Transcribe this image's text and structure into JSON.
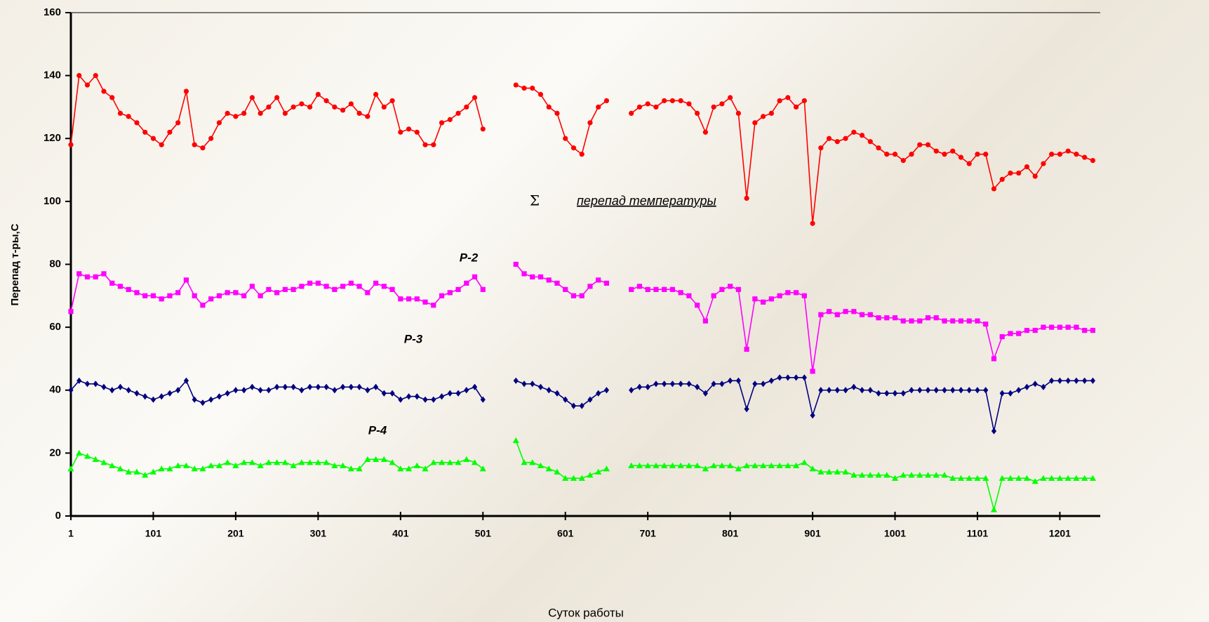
{
  "chart_data": {
    "type": "line",
    "x_label": "Суток работы",
    "y_label": "Перепад т-ры,С",
    "sigma_label": "Σ",
    "xlim": [
      1,
      1250
    ],
    "ylim": [
      0,
      160
    ],
    "xticks": [
      1,
      101,
      201,
      301,
      401,
      501,
      601,
      701,
      801,
      901,
      1001,
      1101,
      1201
    ],
    "yticks": [
      0,
      20,
      40,
      60,
      80,
      100,
      120,
      140,
      160
    ],
    "x": [
      1,
      11,
      21,
      31,
      41,
      51,
      61,
      71,
      81,
      91,
      101,
      111,
      121,
      131,
      141,
      151,
      161,
      171,
      181,
      191,
      201,
      211,
      221,
      231,
      241,
      251,
      261,
      271,
      281,
      291,
      301,
      311,
      321,
      331,
      341,
      351,
      361,
      371,
      381,
      391,
      401,
      411,
      421,
      431,
      441,
      451,
      461,
      471,
      481,
      491,
      501,
      511,
      521,
      531,
      541,
      551,
      561,
      571,
      581,
      591,
      601,
      611,
      621,
      631,
      641,
      651,
      661,
      671,
      681,
      691,
      701,
      711,
      721,
      731,
      741,
      751,
      761,
      771,
      781,
      791,
      801,
      811,
      821,
      831,
      841,
      851,
      861,
      871,
      881,
      891,
      901,
      911,
      921,
      931,
      941,
      951,
      961,
      971,
      981,
      991,
      1001,
      1011,
      1021,
      1031,
      1041,
      1051,
      1061,
      1071,
      1081,
      1091,
      1101,
      1111,
      1121,
      1131,
      1141,
      1151,
      1161,
      1171,
      1181,
      1191,
      1201,
      1211,
      1221,
      1231,
      1241
    ],
    "series": [
      {
        "name": "перепад температуры",
        "color": "#ff0000",
        "marker": "circle",
        "values": [
          118,
          140,
          137,
          140,
          135,
          133,
          128,
          127,
          125,
          122,
          120,
          118,
          122,
          125,
          135,
          118,
          117,
          120,
          125,
          128,
          127,
          128,
          133,
          128,
          130,
          133,
          128,
          130,
          131,
          130,
          134,
          132,
          130,
          129,
          131,
          128,
          127,
          134,
          130,
          132,
          122,
          123,
          122,
          118,
          118,
          125,
          126,
          128,
          130,
          133,
          123,
          null,
          null,
          null,
          137,
          136,
          136,
          134,
          130,
          128,
          120,
          117,
          115,
          125,
          130,
          132,
          null,
          null,
          128,
          130,
          131,
          130,
          132,
          132,
          132,
          131,
          128,
          122,
          130,
          131,
          133,
          128,
          101,
          125,
          127,
          128,
          132,
          133,
          130,
          132,
          93,
          117,
          120,
          119,
          120,
          122,
          121,
          119,
          117,
          115,
          115,
          113,
          115,
          118,
          118,
          116,
          115,
          116,
          114,
          112,
          115,
          115,
          104,
          107,
          109,
          109,
          111,
          108,
          112,
          115,
          115,
          116,
          115,
          114,
          113
        ]
      },
      {
        "name": "P-2",
        "color": "#ff00ff",
        "marker": "square",
        "values": [
          65,
          77,
          76,
          76,
          77,
          74,
          73,
          72,
          71,
          70,
          70,
          69,
          70,
          71,
          75,
          70,
          67,
          69,
          70,
          71,
          71,
          70,
          73,
          70,
          72,
          71,
          72,
          72,
          73,
          74,
          74,
          73,
          72,
          73,
          74,
          73,
          71,
          74,
          73,
          72,
          69,
          69,
          69,
          68,
          67,
          70,
          71,
          72,
          74,
          76,
          72,
          null,
          null,
          null,
          80,
          77,
          76,
          76,
          75,
          74,
          72,
          70,
          70,
          73,
          75,
          74,
          null,
          null,
          72,
          73,
          72,
          72,
          72,
          72,
          71,
          70,
          67,
          62,
          70,
          72,
          73,
          72,
          53,
          69,
          68,
          69,
          70,
          71,
          71,
          70,
          46,
          64,
          65,
          64,
          65,
          65,
          64,
          64,
          63,
          63,
          63,
          62,
          62,
          62,
          63,
          63,
          62,
          62,
          62,
          62,
          62,
          61,
          50,
          57,
          58,
          58,
          59,
          59,
          60,
          60,
          60,
          60,
          60,
          59,
          59
        ]
      },
      {
        "name": "P-3",
        "color": "#000080",
        "marker": "diamond",
        "values": [
          40,
          43,
          42,
          42,
          41,
          40,
          41,
          40,
          39,
          38,
          37,
          38,
          39,
          40,
          43,
          37,
          36,
          37,
          38,
          39,
          40,
          40,
          41,
          40,
          40,
          41,
          41,
          41,
          40,
          41,
          41,
          41,
          40,
          41,
          41,
          41,
          40,
          41,
          39,
          39,
          37,
          38,
          38,
          37,
          37,
          38,
          39,
          39,
          40,
          41,
          37,
          null,
          null,
          null,
          43,
          42,
          42,
          41,
          40,
          39,
          37,
          35,
          35,
          37,
          39,
          40,
          null,
          null,
          40,
          41,
          41,
          42,
          42,
          42,
          42,
          42,
          41,
          39,
          42,
          42,
          43,
          43,
          34,
          42,
          42,
          43,
          44,
          44,
          44,
          44,
          32,
          40,
          40,
          40,
          40,
          41,
          40,
          40,
          39,
          39,
          39,
          39,
          40,
          40,
          40,
          40,
          40,
          40,
          40,
          40,
          40,
          40,
          27,
          39,
          39,
          40,
          41,
          42,
          41,
          43,
          43,
          43,
          43,
          43,
          43
        ]
      },
      {
        "name": "P-4",
        "color": "#00ff00",
        "marker": "triangle",
        "values": [
          15,
          20,
          19,
          18,
          17,
          16,
          15,
          14,
          14,
          13,
          14,
          15,
          15,
          16,
          16,
          15,
          15,
          16,
          16,
          17,
          16,
          17,
          17,
          16,
          17,
          17,
          17,
          16,
          17,
          17,
          17,
          17,
          16,
          16,
          15,
          15,
          18,
          18,
          18,
          17,
          15,
          15,
          16,
          15,
          17,
          17,
          17,
          17,
          18,
          17,
          15,
          null,
          null,
          null,
          24,
          17,
          17,
          16,
          15,
          14,
          12,
          12,
          12,
          13,
          14,
          15,
          null,
          null,
          16,
          16,
          16,
          16,
          16,
          16,
          16,
          16,
          16,
          15,
          16,
          16,
          16,
          15,
          16,
          16,
          16,
          16,
          16,
          16,
          16,
          17,
          15,
          14,
          14,
          14,
          14,
          13,
          13,
          13,
          13,
          13,
          12,
          13,
          13,
          13,
          13,
          13,
          13,
          12,
          12,
          12,
          12,
          12,
          2,
          12,
          12,
          12,
          12,
          11,
          12,
          12,
          12,
          12,
          12,
          12,
          12
        ]
      }
    ]
  }
}
